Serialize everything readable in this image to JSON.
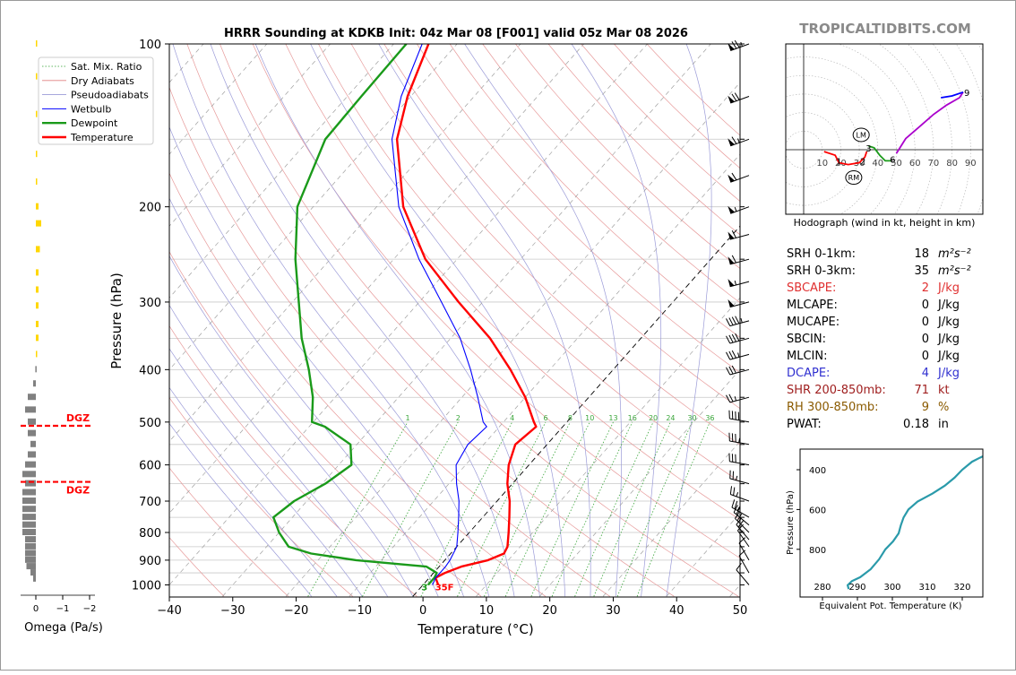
{
  "header": {
    "title": "HRRR Sounding at KDKB Init: 04z Mar 08 [F001] valid 05z Mar 08 2026",
    "brand": "TROPICALTIDBITS.COM"
  },
  "legend": [
    {
      "label": "Sat. Mix. Ratio",
      "color": "#2ca02c",
      "style": "dotted"
    },
    {
      "label": "Dry Adiabats",
      "color": "#e08080",
      "style": "solid"
    },
    {
      "label": "Pseudoadiabats",
      "color": "#8a8ad0",
      "style": "solid"
    },
    {
      "label": "Wetbulb",
      "color": "#0000ff",
      "style": "solid"
    },
    {
      "label": "Dewpoint",
      "color": "#1a9a1a",
      "style": "solid"
    },
    {
      "label": "Temperature",
      "color": "#ff0000",
      "style": "solid"
    }
  ],
  "omega": {
    "xlabel": "Omega (Pa/s)",
    "xticks": [
      "0",
      "−1",
      "−2"
    ],
    "dgz_label": "DGZ",
    "dgz_bounds_hpa": [
      508,
      645
    ],
    "bars": [
      {
        "p": 100,
        "v": -0.05,
        "c": "#ffd700"
      },
      {
        "p": 115,
        "v": -0.05,
        "c": "#ffd700"
      },
      {
        "p": 135,
        "v": -0.05,
        "c": "#ffd700"
      },
      {
        "p": 160,
        "v": -0.05,
        "c": "#ffd700"
      },
      {
        "p": 180,
        "v": -0.05,
        "c": "#ffd700"
      },
      {
        "p": 200,
        "v": -0.1,
        "c": "#ffd700"
      },
      {
        "p": 215,
        "v": -0.2,
        "c": "#ffd700"
      },
      {
        "p": 240,
        "v": -0.15,
        "c": "#ffd700"
      },
      {
        "p": 265,
        "v": -0.1,
        "c": "#ffd700"
      },
      {
        "p": 285,
        "v": -0.1,
        "c": "#ffd700"
      },
      {
        "p": 305,
        "v": -0.1,
        "c": "#ffd700"
      },
      {
        "p": 330,
        "v": -0.1,
        "c": "#ffd700"
      },
      {
        "p": 350,
        "v": -0.1,
        "c": "#ffd700"
      },
      {
        "p": 375,
        "v": -0.05,
        "c": "#ffd700"
      },
      {
        "p": 400,
        "v": 0.02,
        "c": "#808080"
      },
      {
        "p": 425,
        "v": 0.1,
        "c": "#808080"
      },
      {
        "p": 450,
        "v": 0.3,
        "c": "#808080"
      },
      {
        "p": 475,
        "v": 0.4,
        "c": "#808080"
      },
      {
        "p": 500,
        "v": 0.3,
        "c": "#808080"
      },
      {
        "p": 525,
        "v": 0.3,
        "c": "#808080"
      },
      {
        "p": 550,
        "v": 0.2,
        "c": "#808080"
      },
      {
        "p": 575,
        "v": 0.3,
        "c": "#808080"
      },
      {
        "p": 600,
        "v": 0.4,
        "c": "#808080"
      },
      {
        "p": 625,
        "v": 0.5,
        "c": "#808080"
      },
      {
        "p": 650,
        "v": 0.4,
        "c": "#808080"
      },
      {
        "p": 675,
        "v": 0.5,
        "c": "#808080"
      },
      {
        "p": 700,
        "v": 0.5,
        "c": "#808080"
      },
      {
        "p": 725,
        "v": 0.5,
        "c": "#808080"
      },
      {
        "p": 750,
        "v": 0.5,
        "c": "#808080"
      },
      {
        "p": 775,
        "v": 0.5,
        "c": "#808080"
      },
      {
        "p": 800,
        "v": 0.5,
        "c": "#808080"
      },
      {
        "p": 825,
        "v": 0.4,
        "c": "#808080"
      },
      {
        "p": 850,
        "v": 0.4,
        "c": "#808080"
      },
      {
        "p": 875,
        "v": 0.4,
        "c": "#808080"
      },
      {
        "p": 900,
        "v": 0.4,
        "c": "#808080"
      },
      {
        "p": 925,
        "v": 0.35,
        "c": "#808080"
      },
      {
        "p": 950,
        "v": 0.2,
        "c": "#808080"
      },
      {
        "p": 975,
        "v": 0.1,
        "c": "#808080"
      }
    ]
  },
  "chart_data": {
    "type": "line",
    "title": "HRRR Sounding at KDKB Init: 04z Mar 08 [F001] valid 05z Mar 08 2026",
    "xlabel": "Temperature (°C)",
    "ylabel": "Pressure (hPa)",
    "xlim": [
      -40,
      50
    ],
    "ylim": [
      1050,
      100
    ],
    "yscale": "log",
    "skew": true,
    "xticks": [
      -40,
      -30,
      -20,
      -10,
      0,
      10,
      20,
      30,
      40,
      50
    ],
    "yticks": [
      100,
      200,
      300,
      400,
      500,
      600,
      700,
      800,
      900,
      1000
    ],
    "mixing_ratio_labels": [
      "1",
      "2",
      "4",
      "6",
      "8",
      "10",
      "13",
      "16",
      "20",
      "24",
      "30",
      "36"
    ],
    "series": [
      {
        "name": "Temperature",
        "color": "#ff0000",
        "points": [
          [
            1000,
            2.4
          ],
          [
            970,
            1.0
          ],
          [
            950,
            1.8
          ],
          [
            925,
            3.5
          ],
          [
            900,
            6.8
          ],
          [
            875,
            8.4
          ],
          [
            850,
            8.0
          ],
          [
            800,
            6.2
          ],
          [
            750,
            4.2
          ],
          [
            700,
            2.0
          ],
          [
            650,
            -0.8
          ],
          [
            600,
            -3.2
          ],
          [
            550,
            -5.0
          ],
          [
            510,
            -4.2
          ],
          [
            500,
            -5.2
          ],
          [
            450,
            -10.0
          ],
          [
            400,
            -16.2
          ],
          [
            350,
            -23.8
          ],
          [
            300,
            -33.8
          ],
          [
            250,
            -45.0
          ],
          [
            200,
            -55.8
          ],
          [
            150,
            -66.2
          ],
          [
            125,
            -70.5
          ],
          [
            100,
            -74.5
          ]
        ]
      },
      {
        "name": "Dewpoint",
        "color": "#1a9a1a",
        "points": [
          [
            1000,
            0.8
          ],
          [
            970,
            0.8
          ],
          [
            950,
            0.5
          ],
          [
            925,
            -2.0
          ],
          [
            900,
            -14.0
          ],
          [
            875,
            -22.0
          ],
          [
            850,
            -26.5
          ],
          [
            800,
            -30.0
          ],
          [
            750,
            -33.0
          ],
          [
            700,
            -32.0
          ],
          [
            650,
            -29.5
          ],
          [
            600,
            -28.0
          ],
          [
            550,
            -31.0
          ],
          [
            510,
            -37.5
          ],
          [
            500,
            -40.2
          ],
          [
            450,
            -43.5
          ],
          [
            400,
            -48.0
          ],
          [
            350,
            -53.5
          ],
          [
            300,
            -59.0
          ],
          [
            250,
            -65.5
          ],
          [
            200,
            -72.5
          ],
          [
            150,
            -77.5
          ],
          [
            125,
            -77.8
          ],
          [
            100,
            -78.0
          ]
        ]
      },
      {
        "name": "Wetbulb",
        "color": "#0000ff",
        "points": [
          [
            1000,
            1.5
          ],
          [
            970,
            1.0
          ],
          [
            950,
            1.0
          ],
          [
            925,
            1.0
          ],
          [
            900,
            0.8
          ],
          [
            850,
            0.0
          ],
          [
            800,
            -1.8
          ],
          [
            750,
            -3.8
          ],
          [
            700,
            -6.0
          ],
          [
            650,
            -8.8
          ],
          [
            600,
            -11.5
          ],
          [
            550,
            -12.5
          ],
          [
            510,
            -12.0
          ],
          [
            500,
            -13.2
          ],
          [
            450,
            -17.5
          ],
          [
            400,
            -22.5
          ],
          [
            350,
            -28.5
          ],
          [
            300,
            -36.5
          ],
          [
            250,
            -46.0
          ],
          [
            200,
            -56.5
          ],
          [
            150,
            -67.0
          ],
          [
            125,
            -71.5
          ],
          [
            100,
            -75.5
          ]
        ]
      }
    ],
    "surface_labels": [
      {
        "text": "3",
        "color": "#1a9a1a"
      },
      {
        "text": "35F",
        "color": "#ff0000"
      }
    ]
  },
  "hodograph": {
    "xlabel": "Hodograph (wind in kt, height in km)",
    "ring_labels": [
      "10",
      "20",
      "30",
      "40",
      "50",
      "60",
      "70",
      "80",
      "90"
    ],
    "storm_motion": [
      {
        "label": "LM",
        "u": 31,
        "v": 8
      },
      {
        "label": "RM",
        "u": 27,
        "v": -15
      }
    ],
    "height_labels": [
      {
        "label": "1",
        "u": 19,
        "v": -6
      },
      {
        "label": "2",
        "u": 32,
        "v": -6
      },
      {
        "label": "3",
        "u": 35,
        "v": 1
      },
      {
        "label": "6",
        "u": 48,
        "v": -5
      },
      {
        "label": "9",
        "u": 88,
        "v": 31
      }
    ],
    "segments": [
      {
        "color": "#ff0000",
        "pts": [
          [
            11,
            -1
          ],
          [
            17,
            -3
          ],
          [
            19,
            -7
          ],
          [
            24,
            -8
          ],
          [
            30,
            -7
          ],
          [
            33,
            -4
          ],
          [
            34,
            -1
          ]
        ]
      },
      {
        "color": "#1a9a1a",
        "pts": [
          [
            35,
            2
          ],
          [
            38,
            1
          ],
          [
            41,
            -3
          ],
          [
            44,
            -6
          ],
          [
            47,
            -6
          ]
        ]
      },
      {
        "color": "#aa00cc",
        "pts": [
          [
            50,
            -2
          ],
          [
            55,
            6
          ],
          [
            62,
            12
          ],
          [
            70,
            19
          ],
          [
            77,
            24
          ],
          [
            84,
            28
          ],
          [
            86,
            31
          ]
        ]
      },
      {
        "color": "#0000ff",
        "pts": [
          [
            86,
            31
          ],
          [
            80,
            29
          ],
          [
            74,
            28
          ]
        ]
      }
    ]
  },
  "indices": [
    {
      "label": "SRH 0-1km:",
      "value": "18",
      "unit": "m²s⁻²",
      "color": "#000000"
    },
    {
      "label": "SRH 0-3km:",
      "value": "35",
      "unit": "m²s⁻²",
      "color": "#000000"
    },
    {
      "label": "SBCAPE:",
      "value": "2",
      "unit": "J/kg",
      "color": "#e03030"
    },
    {
      "label": "MLCAPE:",
      "value": "0",
      "unit": "J/kg",
      "color": "#000000"
    },
    {
      "label": "MUCAPE:",
      "value": "0",
      "unit": "J/kg",
      "color": "#000000"
    },
    {
      "label": "SBCIN:",
      "value": "0",
      "unit": "J/kg",
      "color": "#000000"
    },
    {
      "label": "MLCIN:",
      "value": "0",
      "unit": "J/kg",
      "color": "#000000"
    },
    {
      "label": "DCAPE:",
      "value": "4",
      "unit": "J/kg",
      "color": "#3030d0"
    },
    {
      "label": "SHR 200-850mb:",
      "value": "71",
      "unit": "kt",
      "color": "#a02020"
    },
    {
      "label": "RH 300-850mb:",
      "value": "9",
      "unit": "%",
      "color": "#8a5a00"
    },
    {
      "label": "PWAT:",
      "value": "0.18",
      "unit": "in",
      "color": "#000000"
    }
  ],
  "theta_e": {
    "xlabel": "Equivalent Pot. Temperature (K)",
    "ylabel": "Pressure (hPa)",
    "xticks": [
      "280",
      "290",
      "300",
      "310",
      "320"
    ],
    "yticks": [
      "400",
      "600",
      "800"
    ],
    "color": "#2a9aaa",
    "points": [
      [
        1000,
        287.5
      ],
      [
        980,
        287.2
      ],
      [
        960,
        288.4
      ],
      [
        940,
        290.8
      ],
      [
        900,
        293.8
      ],
      [
        850,
        296.2
      ],
      [
        800,
        298.0
      ],
      [
        760,
        300.2
      ],
      [
        720,
        301.8
      ],
      [
        680,
        302.4
      ],
      [
        640,
        303.2
      ],
      [
        600,
        304.6
      ],
      [
        560,
        307.2
      ],
      [
        520,
        311.5
      ],
      [
        480,
        315.0
      ],
      [
        440,
        317.8
      ],
      [
        400,
        320.0
      ],
      [
        360,
        322.8
      ],
      [
        340,
        325.0
      ],
      [
        320,
        327.5
      ]
    ]
  },
  "wind_barbs": [
    {
      "p": 100,
      "spd": 75,
      "dir": 250
    },
    {
      "p": 125,
      "spd": 70,
      "dir": 250
    },
    {
      "p": 150,
      "spd": 65,
      "dir": 250
    },
    {
      "p": 175,
      "spd": 60,
      "dir": 250
    },
    {
      "p": 200,
      "spd": 55,
      "dir": 250
    },
    {
      "p": 225,
      "spd": 60,
      "dir": 255
    },
    {
      "p": 250,
      "spd": 60,
      "dir": 255
    },
    {
      "p": 275,
      "spd": 55,
      "dir": 255
    },
    {
      "p": 300,
      "spd": 50,
      "dir": 255
    },
    {
      "p": 325,
      "spd": 45,
      "dir": 255
    },
    {
      "p": 350,
      "spd": 40,
      "dir": 255
    },
    {
      "p": 375,
      "spd": 35,
      "dir": 255
    },
    {
      "p": 400,
      "spd": 30,
      "dir": 255
    },
    {
      "p": 450,
      "spd": 25,
      "dir": 255
    },
    {
      "p": 500,
      "spd": 40,
      "dir": 280
    },
    {
      "p": 550,
      "spd": 35,
      "dir": 280
    },
    {
      "p": 600,
      "spd": 30,
      "dir": 280
    },
    {
      "p": 650,
      "spd": 25,
      "dir": 285
    },
    {
      "p": 700,
      "spd": 25,
      "dir": 290
    },
    {
      "p": 750,
      "spd": 25,
      "dir": 300
    },
    {
      "p": 775,
      "spd": 20,
      "dir": 310
    },
    {
      "p": 800,
      "spd": 20,
      "dir": 315
    },
    {
      "p": 825,
      "spd": 20,
      "dir": 320
    },
    {
      "p": 850,
      "spd": 15,
      "dir": 325
    },
    {
      "p": 900,
      "spd": 10,
      "dir": 330
    },
    {
      "p": 950,
      "spd": 10,
      "dir": 330
    },
    {
      "p": 1000,
      "spd": 10,
      "dir": 320
    }
  ]
}
